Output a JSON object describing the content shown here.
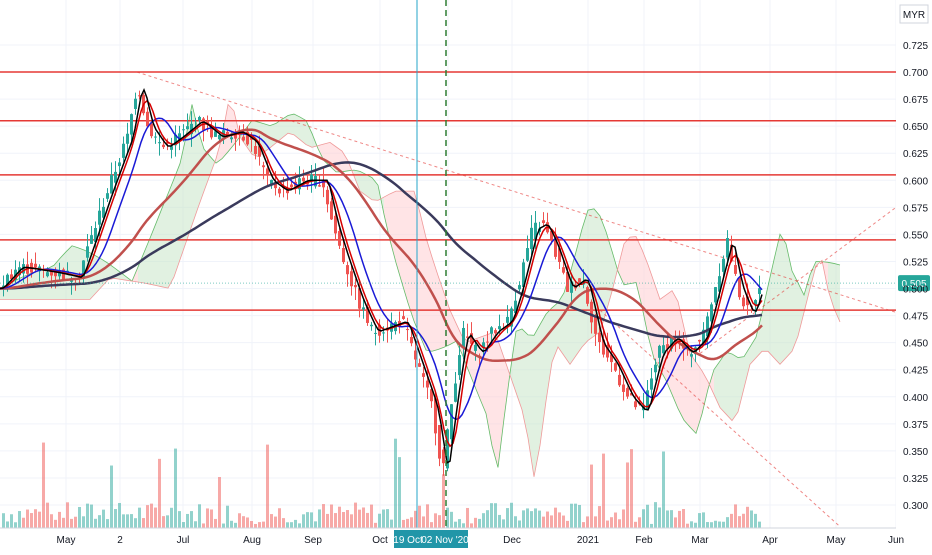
{
  "chart_data": {
    "type": "candlestick",
    "title": "",
    "currency": "MYR",
    "ylim": [
      0.28,
      0.75
    ],
    "price_ticks": [
      "0.725",
      "0.700",
      "0.675",
      "0.650",
      "0.625",
      "0.600",
      "0.575",
      "0.550",
      "0.525",
      "0.500",
      "0.475",
      "0.450",
      "0.425",
      "0.400",
      "0.375",
      "0.350",
      "0.325",
      "0.300"
    ],
    "time_labels": [
      "May",
      "2",
      "Jul",
      "Aug",
      "Sep",
      "Oct",
      "19 Oct",
      "02 Nov '20",
      "Dec",
      "2021",
      "Feb",
      "Mar",
      "Apr",
      "May",
      "Jun"
    ],
    "resistance_levels": [
      {
        "label": "0.700",
        "value": 0.7
      },
      {
        "label": "0.655",
        "value": 0.655
      },
      {
        "label": "0.605",
        "value": 0.605
      },
      {
        "label": "0.545",
        "value": 0.545
      },
      {
        "label": "0.480",
        "value": 0.48
      }
    ],
    "last_price": {
      "label": "0.505",
      "value": 0.505
    },
    "price_path": [
      {
        "x": 0,
        "y": 0.5
      },
      {
        "x": 20,
        "y": 0.52
      },
      {
        "x": 55,
        "y": 0.515
      },
      {
        "x": 80,
        "y": 0.51
      },
      {
        "x": 110,
        "y": 0.59
      },
      {
        "x": 130,
        "y": 0.64
      },
      {
        "x": 140,
        "y": 0.69
      },
      {
        "x": 150,
        "y": 0.65
      },
      {
        "x": 165,
        "y": 0.63
      },
      {
        "x": 180,
        "y": 0.64
      },
      {
        "x": 200,
        "y": 0.655
      },
      {
        "x": 220,
        "y": 0.64
      },
      {
        "x": 240,
        "y": 0.645
      },
      {
        "x": 255,
        "y": 0.635
      },
      {
        "x": 270,
        "y": 0.6
      },
      {
        "x": 285,
        "y": 0.59
      },
      {
        "x": 305,
        "y": 0.6
      },
      {
        "x": 325,
        "y": 0.6
      },
      {
        "x": 335,
        "y": 0.56
      },
      {
        "x": 345,
        "y": 0.53
      },
      {
        "x": 360,
        "y": 0.49
      },
      {
        "x": 375,
        "y": 0.46
      },
      {
        "x": 390,
        "y": 0.465
      },
      {
        "x": 405,
        "y": 0.47
      },
      {
        "x": 420,
        "y": 0.43
      },
      {
        "x": 435,
        "y": 0.39
      },
      {
        "x": 445,
        "y": 0.33
      },
      {
        "x": 455,
        "y": 0.4
      },
      {
        "x": 465,
        "y": 0.46
      },
      {
        "x": 480,
        "y": 0.44
      },
      {
        "x": 495,
        "y": 0.46
      },
      {
        "x": 510,
        "y": 0.47
      },
      {
        "x": 520,
        "y": 0.5
      },
      {
        "x": 535,
        "y": 0.555
      },
      {
        "x": 545,
        "y": 0.56
      },
      {
        "x": 555,
        "y": 0.54
      },
      {
        "x": 570,
        "y": 0.5
      },
      {
        "x": 585,
        "y": 0.51
      },
      {
        "x": 600,
        "y": 0.45
      },
      {
        "x": 615,
        "y": 0.43
      },
      {
        "x": 630,
        "y": 0.4
      },
      {
        "x": 645,
        "y": 0.385
      },
      {
        "x": 660,
        "y": 0.44
      },
      {
        "x": 675,
        "y": 0.455
      },
      {
        "x": 690,
        "y": 0.44
      },
      {
        "x": 705,
        "y": 0.455
      },
      {
        "x": 720,
        "y": 0.51
      },
      {
        "x": 730,
        "y": 0.545
      },
      {
        "x": 740,
        "y": 0.5
      },
      {
        "x": 752,
        "y": 0.475
      },
      {
        "x": 762,
        "y": 0.505
      }
    ],
    "colors": {
      "bull": "#26a69a",
      "bear": "#ef5350",
      "level": "#e53935",
      "ma_dark": "#3a3a5c",
      "ma_blue": "#1a1ad6",
      "ma_red": "#d50000",
      "ma_brown": "#c0504d",
      "cloud_green": "#c8e6c9",
      "cloud_red": "#ffcdd2",
      "badge_time": "#2196a8"
    }
  },
  "axis": {
    "currency_label": "MYR"
  }
}
